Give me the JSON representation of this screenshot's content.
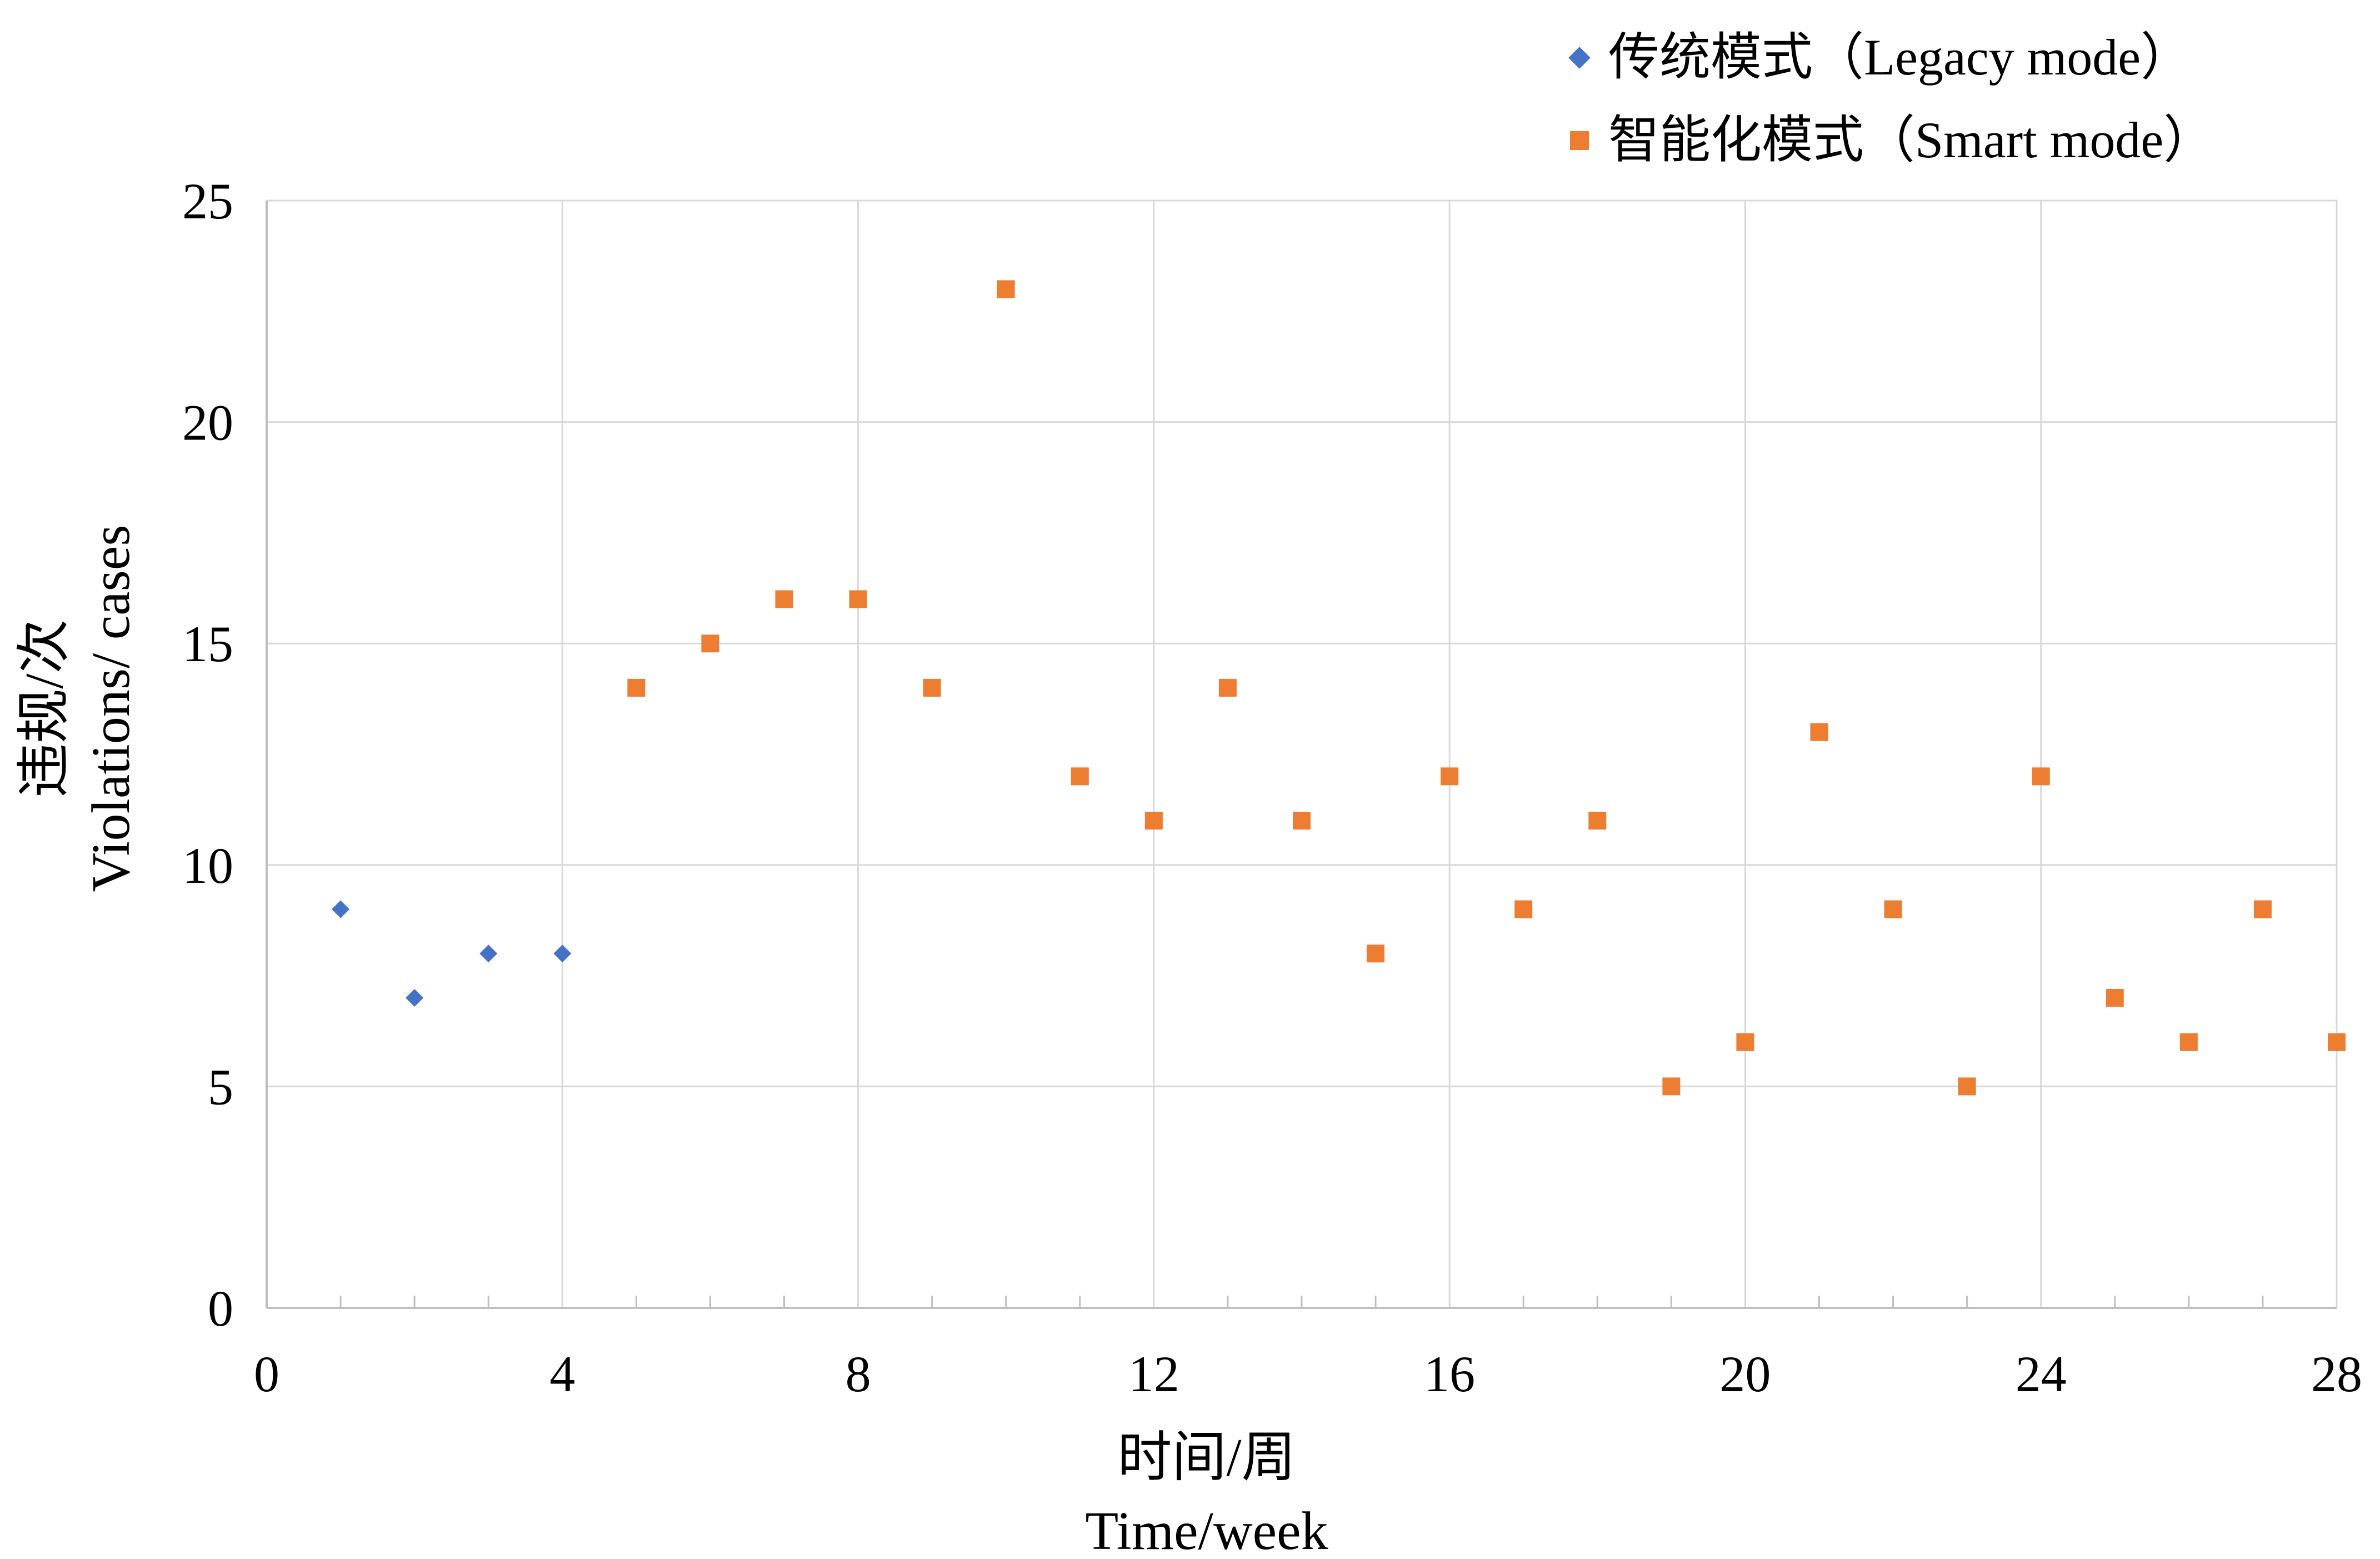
{
  "chart_data": {
    "type": "scatter",
    "xlabel_cn": "时间/周",
    "xlabel_en": "Time/week",
    "ylabel_cn": "违规/次",
    "ylabel_en": "Violations/ cases",
    "xlim": [
      0,
      28
    ],
    "ylim": [
      0,
      25
    ],
    "x_ticks": [
      0,
      4,
      8,
      12,
      16,
      20,
      24,
      28
    ],
    "y_ticks": [
      0,
      5,
      10,
      15,
      20,
      25
    ],
    "grid": true,
    "legend_position": "top-right",
    "series": [
      {
        "name": "传统模式（Legacy mode）",
        "color": "#4472c4",
        "marker": "diamond",
        "points": [
          [
            1,
            9
          ],
          [
            2,
            7
          ],
          [
            3,
            8
          ],
          [
            4,
            8
          ]
        ]
      },
      {
        "name": "智能化模式（Smart mode）",
        "color": "#ed7d31",
        "marker": "square",
        "points": [
          [
            5,
            14
          ],
          [
            6,
            15
          ],
          [
            7,
            16
          ],
          [
            8,
            16
          ],
          [
            9,
            14
          ],
          [
            10,
            23
          ],
          [
            11,
            12
          ],
          [
            12,
            11
          ],
          [
            13,
            14
          ],
          [
            14,
            11
          ],
          [
            15,
            8
          ],
          [
            16,
            12
          ],
          [
            17,
            9
          ],
          [
            18,
            11
          ],
          [
            19,
            5
          ],
          [
            20,
            6
          ],
          [
            21,
            13
          ],
          [
            22,
            9
          ],
          [
            23,
            5
          ],
          [
            24,
            12
          ],
          [
            25,
            7
          ],
          [
            26,
            6
          ],
          [
            27,
            9
          ],
          [
            28,
            6
          ]
        ]
      }
    ]
  }
}
